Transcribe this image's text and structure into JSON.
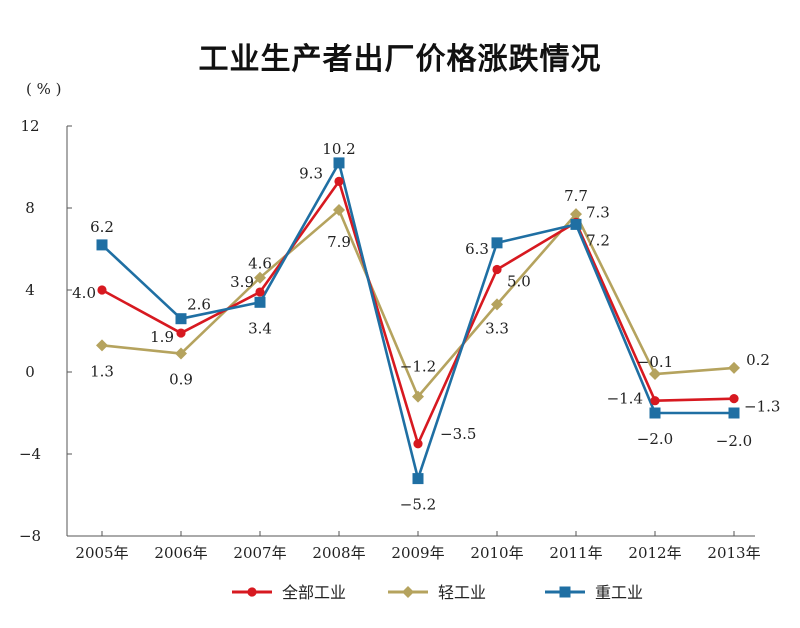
{
  "chart_data": {
    "type": "line",
    "title": "工业生产者出厂价格涨跌情况",
    "unit_label": "( % )",
    "categories": [
      "2005年",
      "2006年",
      "2007年",
      "2008年",
      "2009年",
      "2010年",
      "2011年",
      "2012年",
      "2013年"
    ],
    "ylim": [
      -8,
      12
    ],
    "yticks": [
      "12",
      "8",
      "4",
      "0",
      "−4",
      "−8"
    ],
    "ytick_values": [
      12,
      8,
      4,
      0,
      -4,
      -8
    ],
    "grid": false,
    "legend_position": "bottom",
    "series": [
      {
        "name": "全部工业",
        "color": "#d71920",
        "marker": "circle",
        "values": [
          4.0,
          1.9,
          3.9,
          9.3,
          -3.5,
          5.0,
          7.3,
          -1.4,
          -1.3
        ],
        "labels": [
          "4.0",
          "1.9",
          "3.9",
          "9.3",
          "−3.5",
          "5.0",
          "7.3",
          "−1.4",
          "−1.3"
        ]
      },
      {
        "name": "轻工业",
        "color": "#b5a35e",
        "marker": "diamond",
        "values": [
          1.3,
          0.9,
          4.6,
          7.9,
          -1.2,
          3.3,
          7.7,
          -0.1,
          0.2
        ],
        "labels": [
          "1.3",
          "0.9",
          "4.6",
          "7.9",
          "−1.2",
          "3.3",
          "7.7",
          "−0.1",
          "0.2"
        ]
      },
      {
        "name": "重工业",
        "color": "#1f6fa3",
        "marker": "square",
        "values": [
          6.2,
          2.6,
          3.4,
          10.2,
          -5.2,
          6.3,
          7.2,
          -2.0,
          -2.0
        ],
        "labels": [
          "6.2",
          "2.6",
          "3.4",
          "10.2",
          "−5.2",
          "6.3",
          "7.2",
          "−2.0",
          "−2.0"
        ]
      }
    ]
  }
}
